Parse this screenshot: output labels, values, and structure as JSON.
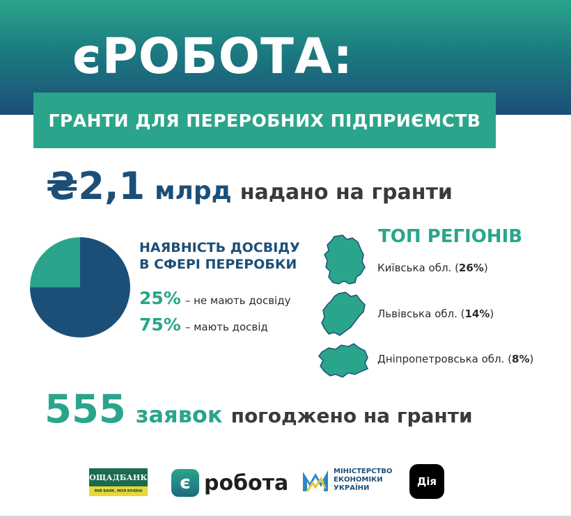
{
  "header": {
    "title": "єРОБОТА:",
    "subtitle": "ГРАНТИ ДЛЯ ПЕРЕРОБНИХ ПІДПРИЄМСТВ"
  },
  "amount": {
    "value": "₴2,1",
    "unit": "млрд",
    "description": "надано на гранти"
  },
  "experience": {
    "title_line1": "НАЯВНІСТЬ ДОСВІДУ",
    "title_line2": "В СФЕРІ ПЕРЕРОБКИ",
    "items": [
      {
        "percent": "25%",
        "label": "– не мають досвіду",
        "value": 25,
        "color": "#2aa58b"
      },
      {
        "percent": "75%",
        "label": "– мають досвід",
        "value": 75,
        "color": "#1c4f78"
      }
    ]
  },
  "regions": {
    "title": "ТОП РЕГІОНІВ",
    "items": [
      {
        "name": "Київська обл.",
        "share": "26%"
      },
      {
        "name": "Львівська обл.",
        "share": "14%"
      },
      {
        "name": "Дніпропетровська обл.",
        "share": "8%"
      }
    ],
    "map_color": "#2aa58b"
  },
  "applications": {
    "count": "555",
    "word": "заявок",
    "description": "погоджено на гранти"
  },
  "logos": {
    "bank_name": "ОЩАДБАНК",
    "bank_slogan": "МІЙ БАНК. МОЯ КРАЇНА",
    "erobota_badge": "є",
    "erobota_word": "робота",
    "ministry_line1": "МІНІСТЕРСТВО",
    "ministry_line2": "ЕКОНОМІКИ",
    "ministry_line3": "УКРАЇНИ",
    "diia": "Дія"
  },
  "colors": {
    "teal": "#2aa58b",
    "navy": "#1c4f78"
  }
}
